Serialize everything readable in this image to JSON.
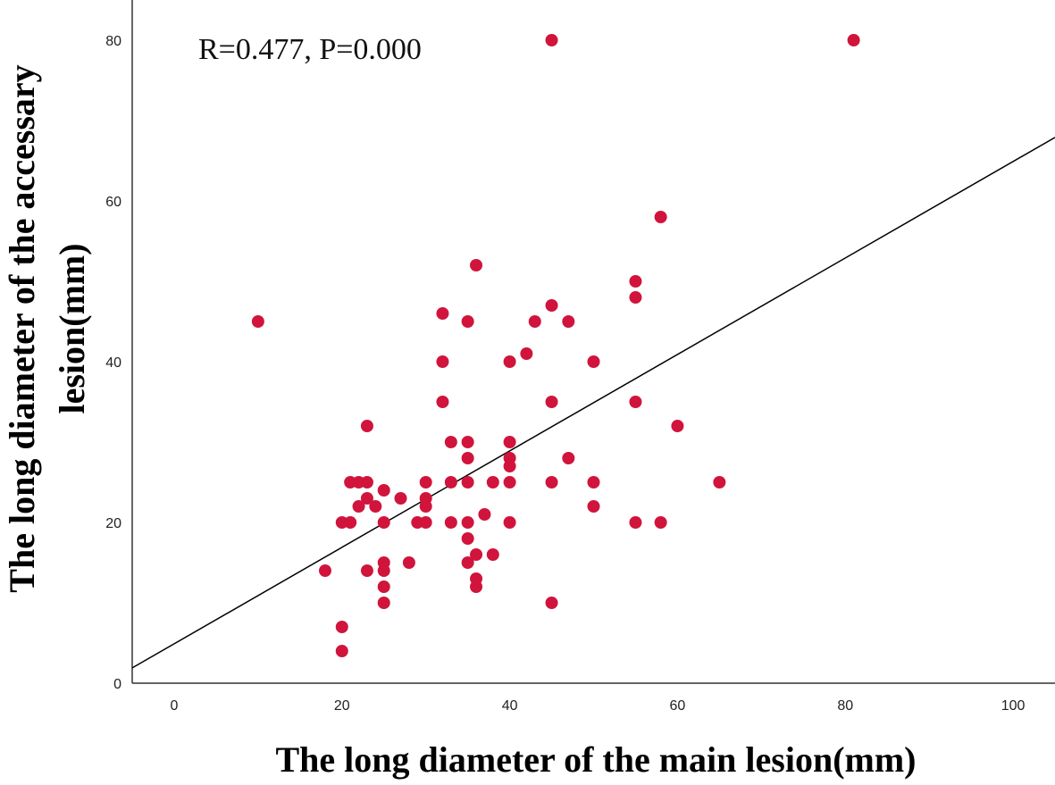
{
  "chart_data": {
    "type": "scatter",
    "title": "",
    "xlabel": "The long diameter of the main lesion(mm)",
    "ylabel_lines": [
      "The long diameter of the accessary",
      "lesion(mm)"
    ],
    "annotation": "R=0.477, P=0.000",
    "xlim": [
      -5,
      105
    ],
    "ylim": [
      0,
      85
    ],
    "xticks": [
      0,
      20,
      40,
      60,
      80,
      100
    ],
    "yticks": [
      0,
      20,
      40,
      60,
      80
    ],
    "grid": false,
    "point_color": "#d0143c",
    "line_color": "#000000",
    "fit_line": {
      "intercept": 4.9,
      "slope": 0.6
    },
    "points": [
      [
        10,
        45
      ],
      [
        18,
        14
      ],
      [
        20,
        4
      ],
      [
        20,
        7
      ],
      [
        20,
        20
      ],
      [
        21,
        20
      ],
      [
        21,
        25
      ],
      [
        22,
        22
      ],
      [
        22,
        25
      ],
      [
        23,
        32
      ],
      [
        23,
        25
      ],
      [
        23,
        23
      ],
      [
        23,
        14
      ],
      [
        24,
        22
      ],
      [
        25,
        24
      ],
      [
        25,
        20
      ],
      [
        25,
        15
      ],
      [
        25,
        14
      ],
      [
        25,
        12
      ],
      [
        25,
        10
      ],
      [
        27,
        23
      ],
      [
        28,
        15
      ],
      [
        29,
        20
      ],
      [
        30,
        25
      ],
      [
        30,
        23
      ],
      [
        30,
        22
      ],
      [
        30,
        20
      ],
      [
        32,
        46
      ],
      [
        32,
        40
      ],
      [
        32,
        35
      ],
      [
        33,
        30
      ],
      [
        33,
        25
      ],
      [
        33,
        20
      ],
      [
        35,
        45
      ],
      [
        35,
        30
      ],
      [
        35,
        28
      ],
      [
        35,
        25
      ],
      [
        35,
        20
      ],
      [
        35,
        18
      ],
      [
        35,
        15
      ],
      [
        36,
        52
      ],
      [
        36,
        16
      ],
      [
        36,
        13
      ],
      [
        36,
        12
      ],
      [
        37,
        21
      ],
      [
        38,
        25
      ],
      [
        38,
        16
      ],
      [
        40,
        40
      ],
      [
        40,
        30
      ],
      [
        40,
        28
      ],
      [
        40,
        27
      ],
      [
        40,
        25
      ],
      [
        40,
        20
      ],
      [
        42,
        41
      ],
      [
        43,
        45
      ],
      [
        45,
        80
      ],
      [
        45,
        47
      ],
      [
        45,
        35
      ],
      [
        45,
        25
      ],
      [
        45,
        10
      ],
      [
        47,
        45
      ],
      [
        47,
        28
      ],
      [
        50,
        40
      ],
      [
        50,
        25
      ],
      [
        50,
        22
      ],
      [
        55,
        50
      ],
      [
        55,
        48
      ],
      [
        55,
        35
      ],
      [
        55,
        20
      ],
      [
        58,
        58
      ],
      [
        58,
        20
      ],
      [
        60,
        32
      ],
      [
        65,
        25
      ],
      [
        81,
        80
      ]
    ]
  }
}
